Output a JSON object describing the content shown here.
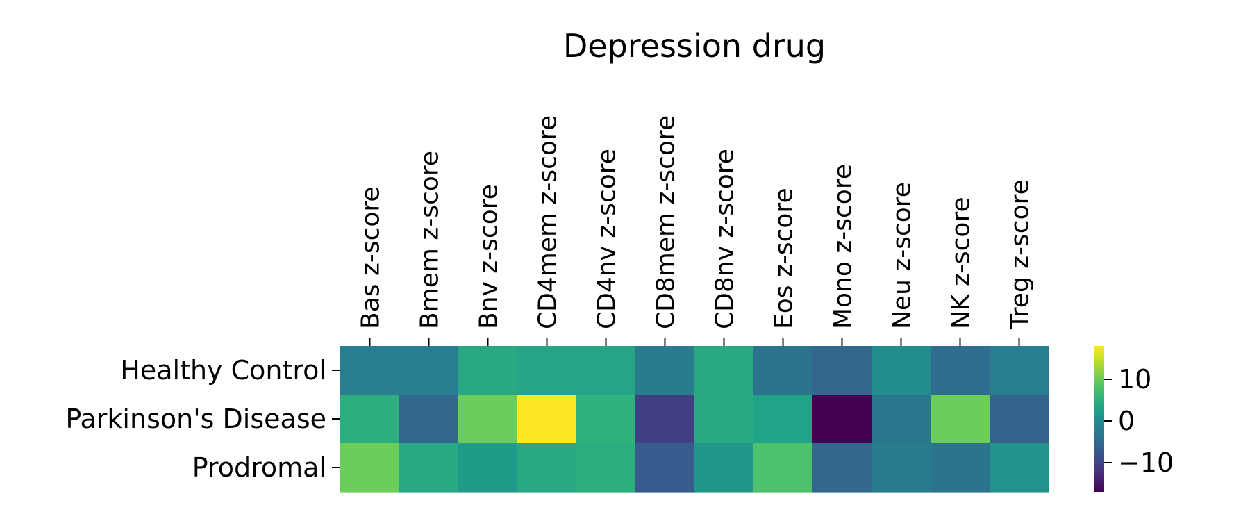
{
  "chart_data": {
    "type": "heatmap",
    "title": "Depression drug",
    "x_tick_position": "top",
    "x_tick_rotation": 90,
    "columns": [
      "Bas z-score",
      "Bmem z-score",
      "Bnv z-score",
      "CD4mem z-score",
      "CD4nv z-score",
      "CD8mem z-score",
      "CD8nv z-score",
      "Eos z-score",
      "Mono z-score",
      "Neu z-score",
      "NK z-score",
      "Treg z-score"
    ],
    "rows": [
      "Healthy Control",
      "Parkinson's Disease",
      "Prodromal"
    ],
    "values": [
      [
        -2.0,
        -2.0,
        4.0,
        3.5,
        3.5,
        -2.5,
        4.0,
        -3.5,
        -5.5,
        0.0,
        -4.5,
        -2.0
      ],
      [
        5.0,
        -5.5,
        10.0,
        18.0,
        5.5,
        -10.5,
        4.0,
        3.0,
        -17.0,
        -3.0,
        10.0,
        -6.0
      ],
      [
        10.0,
        4.0,
        2.0,
        4.0,
        5.0,
        -7.0,
        1.5,
        8.0,
        -5.5,
        -2.5,
        -3.5,
        1.0
      ]
    ],
    "colormap": "viridis",
    "vmin": -17.0,
    "vmax": 18.0,
    "colorbar": {
      "ticks": [
        10,
        0,
        -10
      ],
      "tick_labels": [
        "10",
        "0",
        "−10"
      ]
    }
  }
}
